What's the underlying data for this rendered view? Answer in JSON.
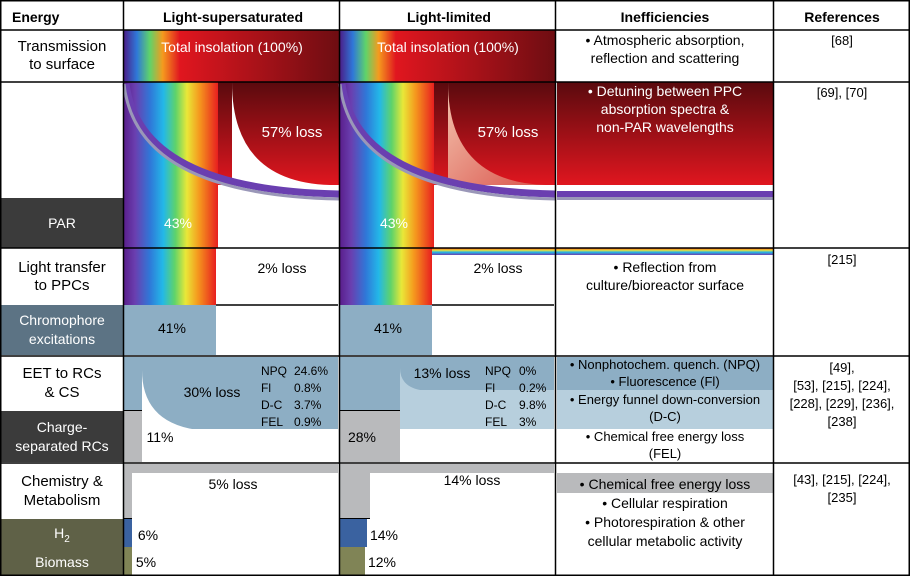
{
  "header": {
    "energy": "Energy",
    "light_supersaturated": "Light-supersaturated",
    "light_limited": "Light-limited",
    "inefficiencies": "Inefficiencies",
    "references": "References"
  },
  "rows": {
    "transmission": {
      "label_line1": "Transmission",
      "label_line2": "to surface",
      "insolation": "Total insolation (100%)",
      "ineff_line1": "• Atmospheric absorption,",
      "ineff_line2": "reflection and scattering",
      "refs": "[68]"
    },
    "par": {
      "label": "PAR",
      "loss": "57% loss",
      "value": "43%",
      "ineff_line1": "• Detuning between PPC",
      "ineff_line2": "absorption spectra &",
      "ineff_line3": "non-PAR wavelengths",
      "refs": "[69], [70]"
    },
    "light_transfer": {
      "label_line1": "Light transfer",
      "label_line2": "to PPCs",
      "loss": "2% loss",
      "ineff_line1": "• Reflection from",
      "ineff_line2": "culture/bioreactor surface",
      "refs": "[215]"
    },
    "chromophore": {
      "label_line1": "Chromophore",
      "label_line2": "excitations",
      "value": "41%"
    },
    "eet": {
      "label_line1": "EET to RCs",
      "label_line2": "& CS",
      "ss_loss": "30% loss",
      "ll_loss": "13% loss",
      "ss_breakdown": [
        {
          "name": "NPQ",
          "value": "24.6%"
        },
        {
          "name": "Fl",
          "value": "0.8%"
        },
        {
          "name": "D-C",
          "value": "3.7%"
        },
        {
          "name": "FEL",
          "value": "0.9%"
        }
      ],
      "ll_breakdown": [
        {
          "name": "NPQ",
          "value": "0%"
        },
        {
          "name": "Fl",
          "value": "0.2%"
        },
        {
          "name": "D-C",
          "value": "9.8%"
        },
        {
          "name": "FEL",
          "value": "3%"
        }
      ],
      "ineff_line1": "• Nonphotochem. quench. (NPQ)",
      "ineff_line2": "• Fluorescence (Fl)",
      "ineff_line3": "• Energy funnel down-conversion",
      "ineff_line4": "(D-C)",
      "ineff_line5": "• Chemical free energy loss",
      "ineff_line6": "(FEL)",
      "refs_line1": "[49],",
      "refs_line2": "[53], [215], [224],",
      "refs_line3": "[228], [229], [236],",
      "refs_line4": "[238]"
    },
    "charge": {
      "label_line1": "Charge-",
      "label_line2": "separated RCs",
      "ss_value": "11%",
      "ll_value": "28%"
    },
    "chemistry": {
      "label_line1": "Chemistry &",
      "label_line2": "Metabolism",
      "ss_loss": "5% loss",
      "ll_loss": "14% loss",
      "ineff_line1": "• Chemical free energy loss",
      "ineff_line2": "• Cellular respiration",
      "ineff_line3": "• Photorespiration & other",
      "ineff_line4": "cellular metabolic activity",
      "refs_line1": "[43], [215], [224],",
      "refs_line2": "[235]"
    },
    "h2": {
      "label": "H",
      "label_sub": "2",
      "ss_value": "6%",
      "ll_value": "14%"
    },
    "biomass": {
      "label": "Biomass",
      "ss_value": "5%",
      "ll_value": "12%"
    }
  },
  "colors": {
    "dark_label": "#3b3b3b",
    "steel_label": "#5c7384",
    "olive_label": "#5f6147",
    "blue_fill": "#8daec4",
    "light_blue": "#b7cfdd",
    "gray_fill": "#b9babc",
    "h2_blue": "#3a62a0",
    "biomass_olive": "#808456",
    "loss_dark": "#6e0d12",
    "loss_red": "#e0161f"
  }
}
